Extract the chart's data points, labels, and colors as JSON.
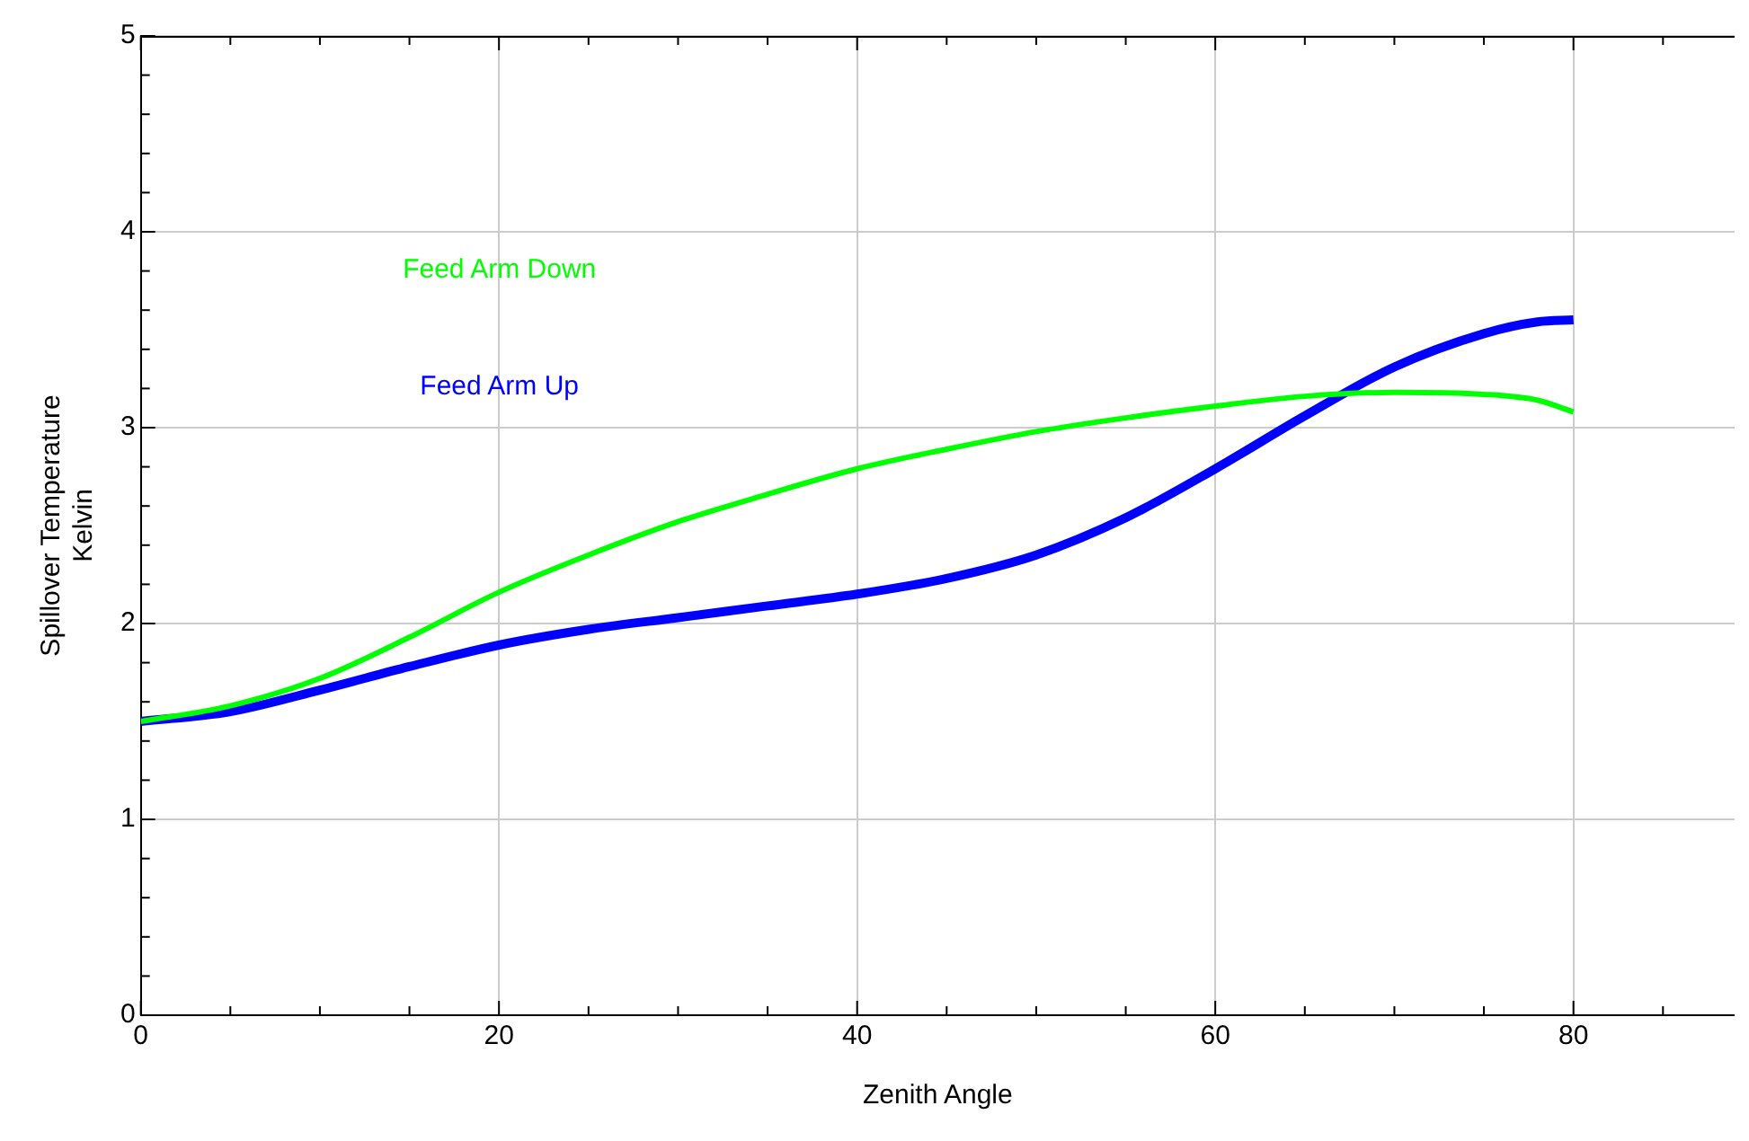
{
  "chart_data": {
    "type": "line",
    "xlabel": "Zenith Angle",
    "ylabel": "Spillover Temperature\nKelvin",
    "xlim": [
      0,
      89
    ],
    "xticks": [
      0,
      {
        "value": 5,
        "label": null
      },
      {
        "value": 10,
        "label": null
      },
      {
        "value": 15,
        "label": null
      },
      20,
      {
        "value": 25,
        "label": null
      },
      {
        "value": 30,
        "label": null
      },
      {
        "value": 35,
        "label": null
      },
      40,
      {
        "value": 45,
        "label": null
      },
      {
        "value": 50,
        "label": null
      },
      {
        "value": 55,
        "label": null
      },
      60,
      {
        "value": 65,
        "label": null
      },
      {
        "value": 70,
        "label": null
      },
      {
        "value": 75,
        "label": null
      },
      80,
      {
        "value": 85,
        "label": null
      }
    ],
    "ylim": [
      0,
      5
    ],
    "yticks": [
      0,
      {
        "value": 0.2,
        "label": null
      },
      {
        "value": 0.4,
        "label": null
      },
      {
        "value": 0.6,
        "label": null
      },
      {
        "value": 0.8,
        "label": null
      },
      1,
      {
        "value": 1.2,
        "label": null
      },
      {
        "value": 1.4,
        "label": null
      },
      {
        "value": 1.6,
        "label": null
      },
      {
        "value": 1.8,
        "label": null
      },
      2,
      {
        "value": 2.2,
        "label": null
      },
      {
        "value": 2.4,
        "label": null
      },
      {
        "value": 2.6,
        "label": null
      },
      {
        "value": 2.8,
        "label": null
      },
      3,
      {
        "value": 3.2,
        "label": null
      },
      {
        "value": 3.4,
        "label": null
      },
      {
        "value": 3.6,
        "label": null
      },
      {
        "value": 3.8,
        "label": null
      },
      4,
      {
        "value": 4.2,
        "label": null
      },
      {
        "value": 4.4,
        "label": null
      },
      {
        "value": 4.6,
        "label": null
      },
      {
        "value": 4.8,
        "label": null
      },
      5
    ],
    "x": [
      0,
      5,
      10,
      15,
      20,
      25,
      30,
      35,
      40,
      45,
      50,
      55,
      60,
      65,
      70,
      75,
      78,
      80
    ],
    "series": [
      {
        "name": "Feed Arm Down",
        "color": "#00ff00",
        "values": [
          1.5,
          1.58,
          1.72,
          1.93,
          2.16,
          2.35,
          2.52,
          2.66,
          2.79,
          2.89,
          2.98,
          3.05,
          3.11,
          3.16,
          3.18,
          3.17,
          3.14,
          3.08
        ]
      },
      {
        "name": "Feed Arm Up",
        "color": "#0000ff",
        "values": [
          1.5,
          1.55,
          1.66,
          1.78,
          1.89,
          1.97,
          2.03,
          2.09,
          2.15,
          2.23,
          2.35,
          2.54,
          2.79,
          3.06,
          3.31,
          3.48,
          3.54,
          3.55
        ]
      }
    ],
    "grid": true,
    "legend": false,
    "marker": "none",
    "line_style": "solid"
  }
}
